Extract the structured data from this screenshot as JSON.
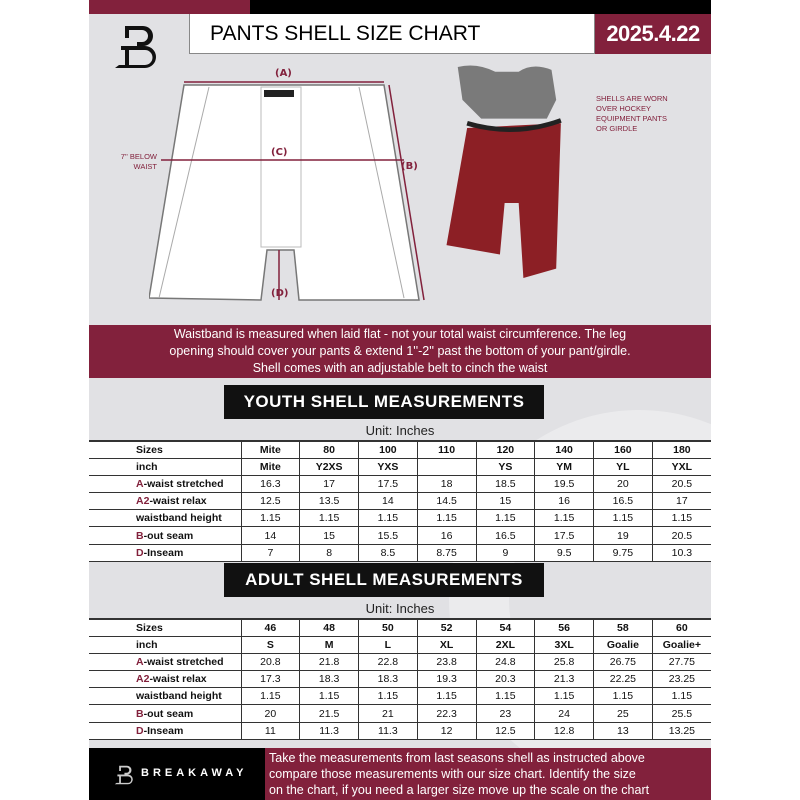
{
  "header": {
    "title": "PANTS SHELL SIZE CHART",
    "date": "2025.4.22",
    "logo": "B"
  },
  "diagram": {
    "label_a": "(A)",
    "label_b": "(B)",
    "label_c": "(C)",
    "label_d": "(D)",
    "below_waist_note": [
      "7'' BELOW",
      "WAIST"
    ],
    "shell_note": [
      "SHELLS ARE WORN",
      "OVER HOCKEY",
      "EQUIPMENT PANTS",
      "OR GIRDLE"
    ]
  },
  "banner": [
    "Waistband is measured when laid flat - not your total waist circumference. The leg",
    "opening should cover your pants & extend 1''-2'' past the bottom of your pant/girdle.",
    "Shell comes with an adjustable belt to cinch the waist"
  ],
  "youth": {
    "title": "YOUTH SHELL MEASUREMENTS",
    "unit": "Unit: Inches",
    "rows": [
      {
        "prefix": "",
        "label": "Sizes",
        "cells": [
          "Mite",
          "80",
          "100",
          "110",
          "120",
          "140",
          "160",
          "180"
        ]
      },
      {
        "prefix": "",
        "label": "inch",
        "cells": [
          "Mite",
          "Y2XS",
          "YXS",
          "",
          "YS",
          "YM",
          "YL",
          "YXL"
        ]
      },
      {
        "prefix": "A",
        "label": "-waist stretched",
        "cells": [
          "16.3",
          "17",
          "17.5",
          "18",
          "18.5",
          "19.5",
          "20",
          "20.5"
        ]
      },
      {
        "prefix": "A2",
        "label": "-waist relax",
        "cells": [
          "12.5",
          "13.5",
          "14",
          "14.5",
          "15",
          "16",
          "16.5",
          "17"
        ]
      },
      {
        "prefix": "",
        "label": "waistband height",
        "cells": [
          "1.15",
          "1.15",
          "1.15",
          "1.15",
          "1.15",
          "1.15",
          "1.15",
          "1.15"
        ]
      },
      {
        "prefix": "B",
        "label": "-out seam",
        "cells": [
          "14",
          "15",
          "15.5",
          "16",
          "16.5",
          "17.5",
          "19",
          "20.5"
        ]
      },
      {
        "prefix": "D",
        "label": "-Inseam",
        "cells": [
          "7",
          "8",
          "8.5",
          "8.75",
          "9",
          "9.5",
          "9.75",
          "10.3"
        ]
      }
    ]
  },
  "adult": {
    "title": "ADULT SHELL MEASUREMENTS",
    "unit": "Unit: Inches",
    "rows": [
      {
        "prefix": "",
        "label": "Sizes",
        "cells": [
          "46",
          "48",
          "50",
          "52",
          "54",
          "56",
          "58",
          "60"
        ]
      },
      {
        "prefix": "",
        "label": "inch",
        "cells": [
          "S",
          "M",
          "L",
          "XL",
          "2XL",
          "3XL",
          "Goalie",
          "Goalie+"
        ]
      },
      {
        "prefix": "A",
        "label": "-waist stretched",
        "cells": [
          "20.8",
          "21.8",
          "22.8",
          "23.8",
          "24.8",
          "25.8",
          "26.75",
          "27.75"
        ]
      },
      {
        "prefix": "A2",
        "label": "-waist relax",
        "cells": [
          "17.3",
          "18.3",
          "18.3",
          "19.3",
          "20.3",
          "21.3",
          "22.25",
          "23.25"
        ]
      },
      {
        "prefix": "",
        "label": "waistband height",
        "cells": [
          "1.15",
          "1.15",
          "1.15",
          "1.15",
          "1.15",
          "1.15",
          "1.15",
          "1.15"
        ]
      },
      {
        "prefix": "B",
        "label": "-out seam",
        "cells": [
          "20",
          "21.5",
          "21",
          "22.3",
          "23",
          "24",
          "25",
          "25.5"
        ]
      },
      {
        "prefix": "D",
        "label": "-Inseam",
        "cells": [
          "11",
          "11.3",
          "11.3",
          "12",
          "12.5",
          "12.8",
          "13",
          "13.25"
        ]
      }
    ]
  },
  "footer": {
    "brand": "BREAKAWAY",
    "text": [
      "Take the measurements from last seasons shell as instructed above",
      "compare those measurements  with our size chart. Identify the size",
      "on the chart, if you need a larger size move up the scale on the chart"
    ]
  },
  "colors": {
    "accent": "#82213c",
    "dark": "#000000",
    "background": "#e1e1e4"
  }
}
